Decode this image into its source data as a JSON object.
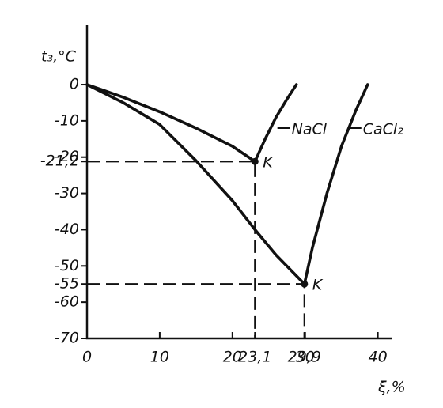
{
  "chart_data": {
    "type": "line",
    "y_label": "t₃,°C",
    "x_label": "ξ,%",
    "xlim": [
      0,
      42
    ],
    "ylim": [
      -70,
      12
    ],
    "xticks": [
      0,
      10,
      20,
      {
        "value": 23.1,
        "label": "23,1"
      },
      {
        "value": 29.9,
        "label": "29,9"
      },
      30,
      40
    ],
    "yticks": [
      0,
      -10,
      -20,
      {
        "value": -21.2,
        "label": "-21,2"
      },
      -30,
      -40,
      -50,
      -55,
      -60,
      -70
    ],
    "series": [
      {
        "name": "NaCl",
        "color": "#111111",
        "point_label": "K",
        "x": [
          0,
          5,
          10,
          15,
          20,
          23.1,
          24.5,
          26,
          27.5,
          28.8
        ],
        "values": [
          0,
          -3.5,
          -7.5,
          -12,
          -17,
          -21.2,
          -15,
          -9,
          -4,
          0
        ]
      },
      {
        "name": "CaCl₂",
        "color": "#111111",
        "point_label": "K",
        "x": [
          0,
          5,
          10,
          15,
          20,
          23.1,
          26,
          29.9,
          31,
          33,
          35,
          37,
          38.6
        ],
        "values": [
          0,
          -5,
          -11,
          -21,
          -32,
          -40,
          -47,
          -55,
          -45,
          -30,
          -17,
          -7,
          0
        ]
      }
    ]
  }
}
